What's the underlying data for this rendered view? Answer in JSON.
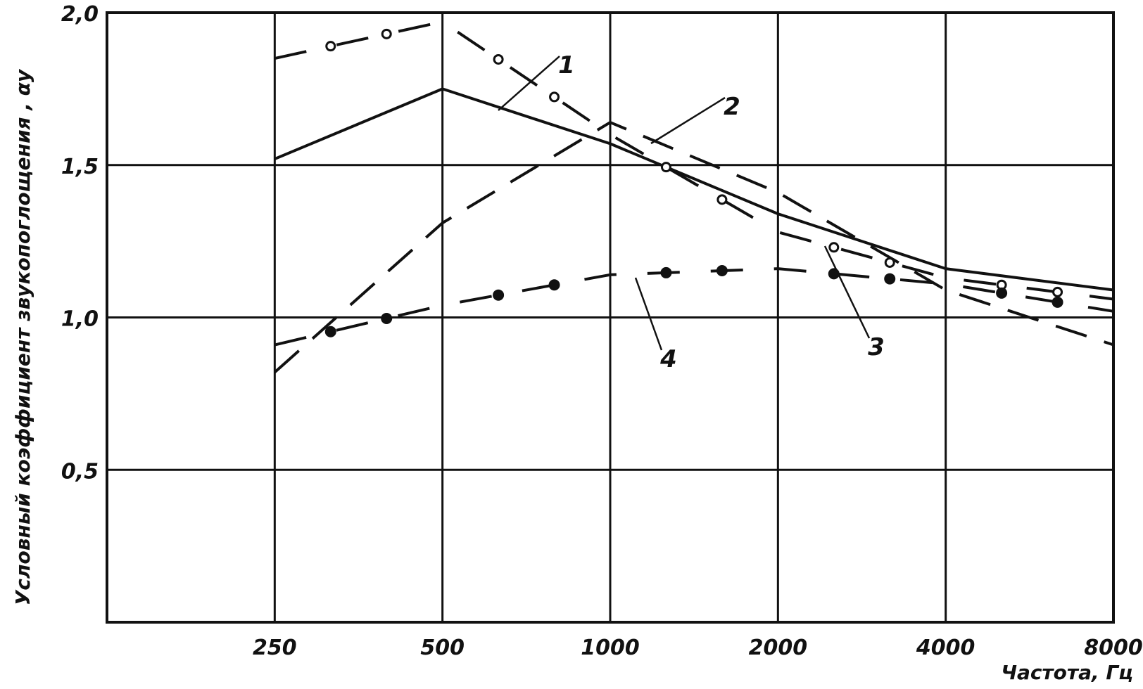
{
  "chart_data": {
    "type": "line",
    "xlabel": "Частота, Гц",
    "ylabel": "Условный коэффициент звукопоглощения , αу",
    "x": [
      250,
      500,
      1000,
      2000,
      4000,
      8000
    ],
    "x_tick_labels": [
      "250",
      "500",
      "1000",
      "2000",
      "4000",
      "8000"
    ],
    "x_scale": "log2",
    "xlim": [
      125,
      8000
    ],
    "ylim": [
      0,
      2.0
    ],
    "y_ticks": [
      0.5,
      1.0,
      1.5,
      2.0
    ],
    "y_tick_labels": [
      "0,5",
      "1,0",
      "1,5",
      "2,0"
    ],
    "grid": true,
    "series": [
      {
        "name": "1",
        "style": "solid",
        "values": [
          1.52,
          1.75,
          1.57,
          1.34,
          1.16,
          1.09
        ]
      },
      {
        "name": "2",
        "style": "dashed",
        "values": [
          0.82,
          1.31,
          1.64,
          1.41,
          1.09,
          0.91
        ]
      },
      {
        "name": "3",
        "style": "dash-dot-open-circles",
        "values": [
          1.85,
          1.97,
          1.6,
          1.28,
          1.13,
          1.06
        ]
      },
      {
        "name": "4",
        "style": "dash-dot-filled-dots",
        "values": [
          0.91,
          1.04,
          1.14,
          1.16,
          1.11,
          1.02
        ]
      }
    ]
  }
}
